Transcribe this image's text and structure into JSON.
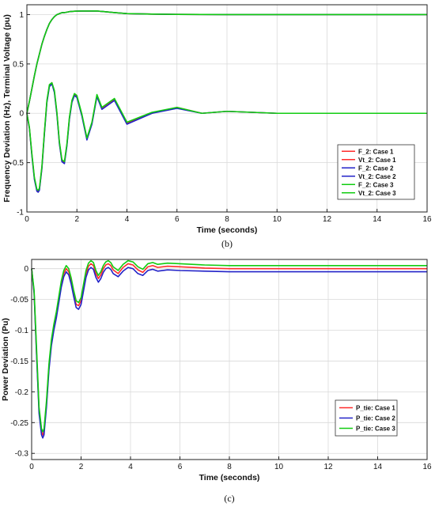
{
  "colors": {
    "case1": "#ff2b2b",
    "case2": "#2222c8",
    "case3": "#11cc11"
  },
  "chart_data": [
    {
      "type": "line",
      "caption": "(b)",
      "xlabel": "Time (seconds)",
      "ylabel": "Frequency Deviation (Hz), Terminal Voltage (pu)",
      "xlim": [
        0,
        16
      ],
      "ylim": [
        -1,
        1.1
      ],
      "xticks": [
        "0",
        "2",
        "4",
        "6",
        "8",
        "10",
        "12",
        "14",
        "16"
      ],
      "yticks": [
        "-1",
        "-0.5",
        "0",
        "0.5",
        "1"
      ],
      "ytick_values": [
        -1,
        -0.5,
        0,
        0.5,
        1
      ],
      "grid": true,
      "legend_position": "bottom-right",
      "x": [
        0,
        0.1,
        0.2,
        0.3,
        0.4,
        0.45,
        0.5,
        0.6,
        0.7,
        0.8,
        0.9,
        1.0,
        1.1,
        1.2,
        1.3,
        1.4,
        1.5,
        1.6,
        1.7,
        1.8,
        1.9,
        2.0,
        2.2,
        2.4,
        2.6,
        2.8,
        3.0,
        3.5,
        4,
        5,
        6,
        7,
        8,
        10,
        12,
        14,
        16
      ],
      "series": [
        {
          "name": "F_2: Case 1",
          "color_key": "case1",
          "rise": 0.8,
          "values": [
            0,
            -0.15,
            -0.42,
            -0.66,
            -0.78,
            -0.79,
            -0.77,
            -0.55,
            -0.2,
            0.12,
            0.28,
            0.31,
            0.22,
            0.0,
            -0.3,
            -0.48,
            -0.5,
            -0.32,
            -0.05,
            0.12,
            0.19,
            0.17,
            -0.02,
            -0.26,
            -0.1,
            0.18,
            0.05,
            0.14,
            -0.1,
            0.0,
            0.06,
            0.0,
            0.02,
            0.0,
            0.0,
            0.0,
            0.0
          ]
        },
        {
          "name": "Vt_2: Case 1",
          "color_key": "case1",
          "values": [
            0,
            0.12,
            0.25,
            0.38,
            0.5,
            0.55,
            0.6,
            0.7,
            0.78,
            0.85,
            0.91,
            0.95,
            0.98,
            1.0,
            1.01,
            1.02,
            1.02,
            1.025,
            1.03,
            1.032,
            1.034,
            1.035,
            1.036,
            1.036,
            1.036,
            1.037,
            1.032,
            1.02,
            1.01,
            1.005,
            1.002,
            1.001,
            1.0,
            1.0,
            1.0,
            1.0,
            1.0
          ]
        },
        {
          "name": "F_2: Case 2",
          "color_key": "case2",
          "values": [
            0,
            -0.15,
            -0.43,
            -0.67,
            -0.79,
            -0.8,
            -0.78,
            -0.56,
            -0.21,
            0.11,
            0.27,
            0.3,
            0.21,
            -0.01,
            -0.31,
            -0.49,
            -0.51,
            -0.33,
            -0.06,
            0.11,
            0.18,
            0.16,
            -0.03,
            -0.27,
            -0.11,
            0.17,
            0.04,
            0.13,
            -0.11,
            0.0,
            0.05,
            0.0,
            0.02,
            0.0,
            0.0,
            0.0,
            0.0
          ]
        },
        {
          "name": "Vt_2: Case 2",
          "color_key": "case2",
          "values": [
            0,
            0.12,
            0.25,
            0.38,
            0.5,
            0.55,
            0.6,
            0.7,
            0.78,
            0.85,
            0.91,
            0.95,
            0.98,
            1.0,
            1.01,
            1.02,
            1.02,
            1.025,
            1.03,
            1.032,
            1.034,
            1.035,
            1.036,
            1.036,
            1.036,
            1.037,
            1.032,
            1.02,
            1.01,
            1.005,
            1.002,
            1.001,
            1.0,
            1.0,
            1.0,
            1.0,
            1.0
          ]
        },
        {
          "name": "F_2: Case 3",
          "color_key": "case3",
          "values": [
            0,
            -0.14,
            -0.41,
            -0.65,
            -0.77,
            -0.78,
            -0.76,
            -0.54,
            -0.19,
            0.13,
            0.29,
            0.31,
            0.23,
            0.01,
            -0.29,
            -0.47,
            -0.49,
            -0.31,
            -0.04,
            0.13,
            0.2,
            0.18,
            -0.01,
            -0.25,
            -0.09,
            0.19,
            0.06,
            0.15,
            -0.09,
            0.01,
            0.06,
            0.0,
            0.02,
            0.0,
            0.0,
            0.0,
            0.0
          ]
        },
        {
          "name": "Vt_2: Case 3",
          "color_key": "case3",
          "values": [
            0,
            0.12,
            0.25,
            0.38,
            0.5,
            0.55,
            0.6,
            0.7,
            0.78,
            0.85,
            0.91,
            0.95,
            0.98,
            1.0,
            1.01,
            1.02,
            1.02,
            1.025,
            1.03,
            1.032,
            1.034,
            1.035,
            1.036,
            1.036,
            1.036,
            1.037,
            1.032,
            1.02,
            1.01,
            1.005,
            1.002,
            1.001,
            1.0,
            1.0,
            1.0,
            1.0,
            1.0
          ]
        }
      ]
    },
    {
      "type": "line",
      "caption": "(c)",
      "xlabel": "Time (seconds)",
      "ylabel": "Power Deviation (Pu)",
      "xlim": [
        0,
        16
      ],
      "ylim": [
        -0.31,
        0.015
      ],
      "xticks": [
        "0",
        "2",
        "4",
        "6",
        "8",
        "10",
        "12",
        "14",
        "16"
      ],
      "yticks": [
        "0",
        "-0.05",
        "-0.1",
        "-0.15",
        "-0.2",
        "-0.25",
        "-0.3"
      ],
      "ytick_values": [
        0,
        -0.05,
        -0.1,
        -0.15,
        -0.2,
        -0.25,
        -0.3
      ],
      "grid": true,
      "legend_position": "bottom-right",
      "x": [
        0,
        0.1,
        0.2,
        0.3,
        0.4,
        0.45,
        0.5,
        0.6,
        0.7,
        0.8,
        0.9,
        1.0,
        1.1,
        1.2,
        1.3,
        1.4,
        1.5,
        1.6,
        1.7,
        1.8,
        1.9,
        2.0,
        2.1,
        2.2,
        2.3,
        2.4,
        2.5,
        2.6,
        2.7,
        2.8,
        2.9,
        3.0,
        3.1,
        3.2,
        3.3,
        3.5,
        3.7,
        3.9,
        4.1,
        4.3,
        4.5,
        4.7,
        4.9,
        5.1,
        5.5,
        6,
        7,
        8,
        10,
        12,
        14,
        16
      ],
      "series": [
        {
          "name": "P_tie: Case 1",
          "color_key": "case1",
          "values": [
            0,
            -0.04,
            -0.14,
            -0.23,
            -0.265,
            -0.27,
            -0.265,
            -0.22,
            -0.16,
            -0.12,
            -0.095,
            -0.075,
            -0.05,
            -0.025,
            -0.008,
            0.0,
            -0.005,
            -0.02,
            -0.04,
            -0.058,
            -0.06,
            -0.052,
            -0.03,
            -0.008,
            0.004,
            0.008,
            0.005,
            -0.008,
            -0.016,
            -0.01,
            0.0,
            0.006,
            0.008,
            0.005,
            -0.002,
            -0.008,
            0.002,
            0.008,
            0.006,
            -0.002,
            -0.006,
            0.003,
            0.005,
            0.002,
            0.004,
            0.003,
            0.001,
            0.0,
            0.0,
            0.0,
            0.0,
            0.0
          ]
        },
        {
          "name": "P_tie: Case 2",
          "color_key": "case2",
          "values": [
            0,
            -0.04,
            -0.14,
            -0.235,
            -0.27,
            -0.275,
            -0.27,
            -0.225,
            -0.165,
            -0.125,
            -0.1,
            -0.08,
            -0.055,
            -0.03,
            -0.013,
            -0.005,
            -0.01,
            -0.025,
            -0.045,
            -0.063,
            -0.066,
            -0.058,
            -0.036,
            -0.014,
            -0.002,
            0.002,
            -0.001,
            -0.014,
            -0.022,
            -0.016,
            -0.006,
            0.0,
            0.002,
            -0.001,
            -0.008,
            -0.013,
            -0.004,
            0.002,
            0.0,
            -0.008,
            -0.011,
            -0.003,
            -0.001,
            -0.004,
            -0.002,
            -0.003,
            -0.004,
            -0.005,
            -0.005,
            -0.005,
            -0.005,
            -0.005
          ]
        },
        {
          "name": "P_tie: Case 3",
          "color_key": "case3",
          "values": [
            0,
            -0.035,
            -0.13,
            -0.225,
            -0.26,
            -0.265,
            -0.26,
            -0.215,
            -0.155,
            -0.115,
            -0.09,
            -0.07,
            -0.045,
            -0.02,
            -0.003,
            0.005,
            0.0,
            -0.015,
            -0.035,
            -0.052,
            -0.055,
            -0.047,
            -0.025,
            -0.003,
            0.009,
            0.013,
            0.01,
            -0.003,
            -0.011,
            -0.005,
            0.005,
            0.011,
            0.013,
            0.01,
            0.003,
            -0.003,
            0.007,
            0.013,
            0.011,
            0.003,
            -0.001,
            0.008,
            0.01,
            0.007,
            0.009,
            0.008,
            0.006,
            0.005,
            0.005,
            0.005,
            0.005,
            0.005
          ]
        }
      ]
    }
  ]
}
